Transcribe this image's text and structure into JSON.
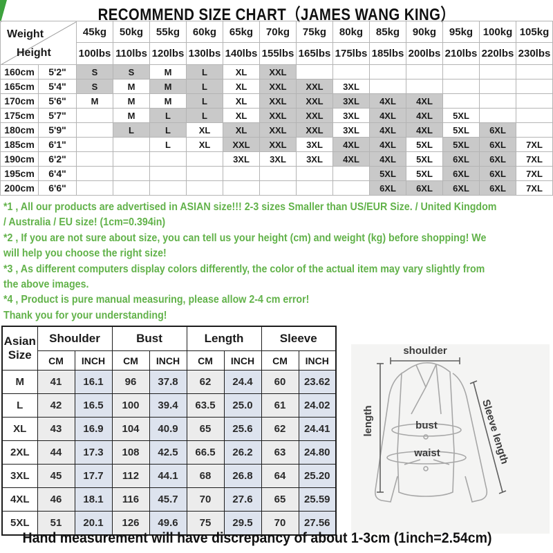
{
  "title": "RECOMMEND SIZE CHART（JAMES WANG KING）",
  "size_matrix": {
    "corner": {
      "weight": "Weight",
      "height": "Height"
    },
    "weight_kg": [
      "45kg",
      "50kg",
      "55kg",
      "60kg",
      "65kg",
      "70kg",
      "75kg",
      "80kg",
      "85kg",
      "90kg",
      "95kg",
      "100kg",
      "105kg"
    ],
    "weight_lbs": [
      "100lbs",
      "110lbs",
      "120lbs",
      "130lbs",
      "140lbs",
      "155lbs",
      "165lbs",
      "175lbs",
      "185lbs",
      "200lbs",
      "210lbs",
      "220lbs",
      "230lbs"
    ],
    "rows": [
      {
        "cm": "160cm",
        "ft": "5'2\"",
        "cells": [
          "S",
          "S",
          "M",
          "L",
          "XL",
          "XXL",
          "",
          "",
          "",
          "",
          "",
          "",
          ""
        ],
        "shade": [
          1,
          1,
          0,
          1,
          0,
          1,
          0,
          0,
          0,
          0,
          0,
          0,
          0
        ]
      },
      {
        "cm": "165cm",
        "ft": "5'4\"",
        "cells": [
          "S",
          "M",
          "M",
          "L",
          "XL",
          "XXL",
          "XXL",
          "3XL",
          "",
          "",
          "",
          "",
          ""
        ],
        "shade": [
          1,
          0,
          1,
          1,
          0,
          1,
          1,
          0,
          0,
          0,
          0,
          0,
          0
        ]
      },
      {
        "cm": "170cm",
        "ft": "5'6\"",
        "cells": [
          "M",
          "M",
          "M",
          "L",
          "XL",
          "XXL",
          "XXL",
          "3XL",
          "4XL",
          "4XL",
          "",
          "",
          ""
        ],
        "shade": [
          0,
          0,
          0,
          1,
          0,
          1,
          1,
          1,
          1,
          1,
          0,
          0,
          0
        ]
      },
      {
        "cm": "175cm",
        "ft": "5'7\"",
        "cells": [
          "",
          "M",
          "L",
          "L",
          "XL",
          "XXL",
          "XXL",
          "3XL",
          "4XL",
          "4XL",
          "5XL",
          "",
          ""
        ],
        "shade": [
          0,
          0,
          1,
          1,
          0,
          1,
          1,
          0,
          1,
          1,
          0,
          0,
          0
        ]
      },
      {
        "cm": "180cm",
        "ft": "5'9\"",
        "cells": [
          "",
          "L",
          "L",
          "XL",
          "XL",
          "XXL",
          "XXL",
          "3XL",
          "4XL",
          "4XL",
          "5XL",
          "6XL",
          ""
        ],
        "shade": [
          0,
          1,
          1,
          0,
          1,
          1,
          1,
          0,
          1,
          1,
          0,
          1,
          0
        ]
      },
      {
        "cm": "185cm",
        "ft": "6'1\"",
        "cells": [
          "",
          "",
          "L",
          "XL",
          "XXL",
          "XXL",
          "3XL",
          "4XL",
          "4XL",
          "5XL",
          "5XL",
          "6XL",
          "7XL"
        ],
        "shade": [
          0,
          0,
          0,
          0,
          1,
          1,
          0,
          1,
          1,
          0,
          1,
          1,
          0
        ]
      },
      {
        "cm": "190cm",
        "ft": "6'2\"",
        "cells": [
          "",
          "",
          "",
          "",
          "3XL",
          "3XL",
          "3XL",
          "4XL",
          "4XL",
          "5XL",
          "6XL",
          "6XL",
          "7XL"
        ],
        "shade": [
          0,
          0,
          0,
          0,
          0,
          0,
          0,
          1,
          1,
          0,
          1,
          1,
          0
        ]
      },
      {
        "cm": "195cm",
        "ft": "6'4\"",
        "cells": [
          "",
          "",
          "",
          "",
          "",
          "",
          "",
          "",
          "5XL",
          "5XL",
          "6XL",
          "6XL",
          "7XL"
        ],
        "shade": [
          0,
          0,
          0,
          0,
          0,
          0,
          0,
          0,
          1,
          0,
          1,
          1,
          0
        ]
      },
      {
        "cm": "200cm",
        "ft": "6'6\"",
        "cells": [
          "",
          "",
          "",
          "",
          "",
          "",
          "",
          "",
          "6XL",
          "6XL",
          "6XL",
          "6XL",
          "7XL"
        ],
        "shade": [
          0,
          0,
          0,
          0,
          0,
          0,
          0,
          0,
          1,
          1,
          1,
          1,
          0
        ]
      }
    ]
  },
  "notes": [
    "*1 , All our products are advertised in ASIAN size!!! 2-3 sizes Smaller than US/EUR Size. / United Kingdom",
    "/ Australia / EU size! (1cm=0.394in)",
    "*2 , If you are not sure about size, you can tell us your height (cm) and weight (kg) before shopping! We",
    "will help you choose the right size!",
    "*3 , As different computers display colors differently, the color of the actual item may vary slightly from",
    "the above images.",
    "*4 , Product is pure manual measuring, please allow 2-4 cm error!",
    "Thank you for your understanding!"
  ],
  "measure_table": {
    "corner_label_line1": "Asian",
    "corner_label_line2": "Size",
    "groups": [
      "Shoulder",
      "Bust",
      "Length",
      "Sleeve"
    ],
    "units": [
      "CM",
      "INCH",
      "CM",
      "INCH",
      "CM",
      "INCH",
      "CM",
      "INCH"
    ],
    "rows": [
      {
        "size": "M",
        "values": [
          "41",
          "16.1",
          "96",
          "37.8",
          "62",
          "24.4",
          "60",
          "23.62"
        ]
      },
      {
        "size": "L",
        "values": [
          "42",
          "16.5",
          "100",
          "39.4",
          "63.5",
          "25.0",
          "61",
          "24.02"
        ]
      },
      {
        "size": "XL",
        "values": [
          "43",
          "16.9",
          "104",
          "40.9",
          "65",
          "25.6",
          "62",
          "24.41"
        ]
      },
      {
        "size": "2XL",
        "values": [
          "44",
          "17.3",
          "108",
          "42.5",
          "66.5",
          "26.2",
          "63",
          "24.80"
        ]
      },
      {
        "size": "3XL",
        "values": [
          "45",
          "17.7",
          "112",
          "44.1",
          "68",
          "26.8",
          "64",
          "25.20"
        ]
      },
      {
        "size": "4XL",
        "values": [
          "46",
          "18.1",
          "116",
          "45.7",
          "70",
          "27.6",
          "65",
          "25.59"
        ]
      },
      {
        "size": "5XL",
        "values": [
          "51",
          "20.1",
          "126",
          "49.6",
          "75",
          "29.5",
          "70",
          "27.56"
        ]
      }
    ]
  },
  "diagram": {
    "shoulder_label": "shoulder",
    "length_label": "length",
    "sleeve_label": "Sleeve length",
    "bust_label": "bust",
    "waist_label": "waist"
  },
  "footer": "Hand measurement will have discrepancy of about 1-3cm (1inch=2.54cm)",
  "colors": {
    "note_green": "#62b24a",
    "corner_green": "#3da23d",
    "shade_gray": "#c9c9c9",
    "cm_fill": "#ececec",
    "inch_fill": "#dde3ee"
  }
}
